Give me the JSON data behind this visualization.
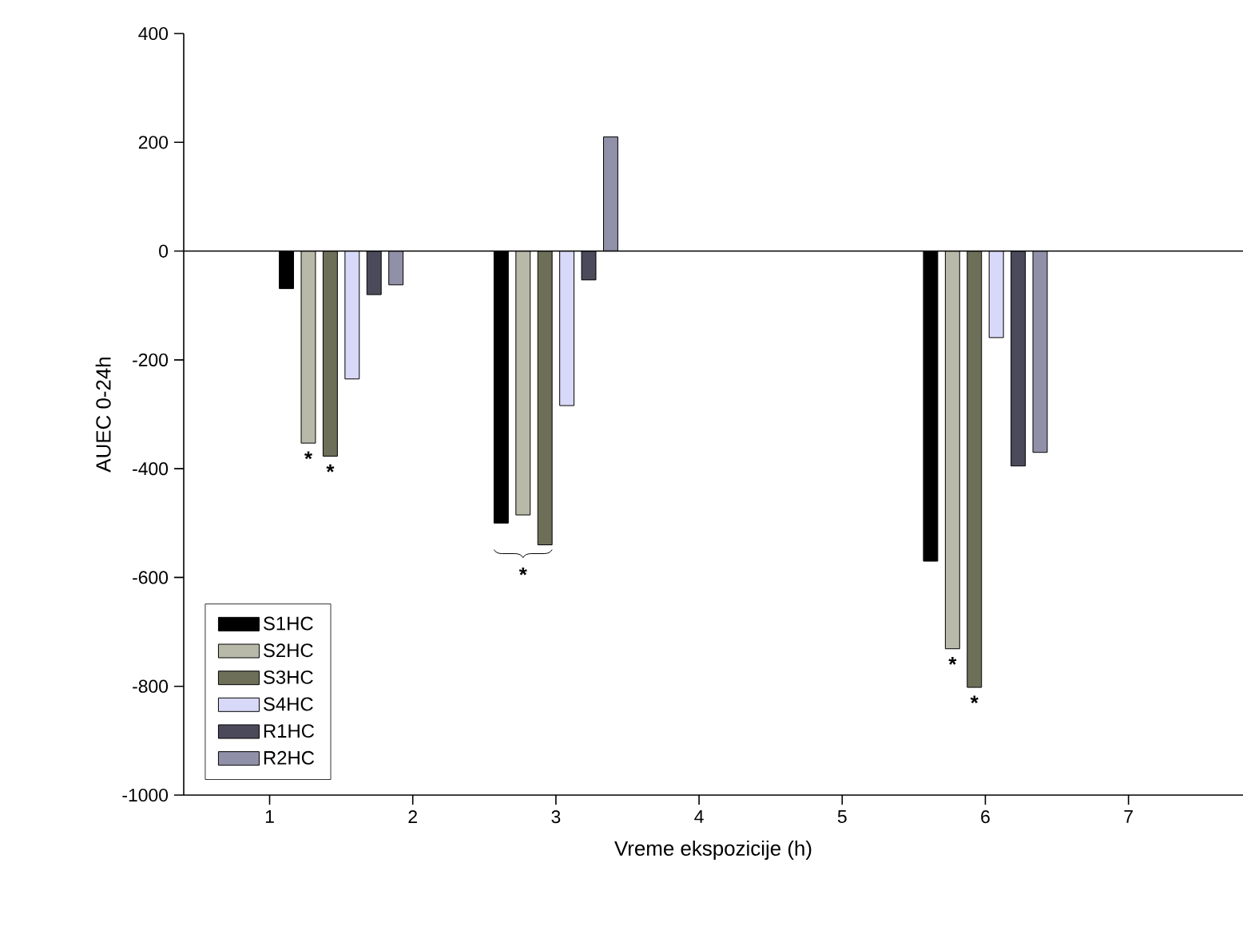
{
  "chart_data": {
    "type": "bar",
    "xlabel": "Vreme ekspozicije (h)",
    "ylabel": "AUEC 0-24h",
    "x": [
      1.5,
      3,
      6
    ],
    "series": [
      {
        "name": "S1HC",
        "color": "#000000",
        "values": [
          -69,
          -500,
          -570
        ]
      },
      {
        "name": "S2HC",
        "color": "#b8b9a8",
        "values": [
          -353,
          -485,
          -731
        ]
      },
      {
        "name": "S3HC",
        "color": "#6e6f58",
        "values": [
          -377,
          -540,
          -802
        ]
      },
      {
        "name": "S4HC",
        "color": "#d8d8f8",
        "values": [
          -235,
          -284,
          -159
        ]
      },
      {
        "name": "R1HC",
        "color": "#4a4a5a",
        "values": [
          -80,
          -53,
          -395
        ]
      },
      {
        "name": "R2HC",
        "color": "#9090a8",
        "values": [
          -62,
          210,
          -370
        ]
      }
    ],
    "xlim": [
      0.4,
      7.8
    ],
    "xticks": [
      1,
      2,
      3,
      4,
      5,
      6,
      7
    ],
    "ylim": [
      -1000,
      400
    ],
    "yticks": [
      -1000,
      -800,
      -600,
      -400,
      -200,
      0,
      200,
      400
    ],
    "ref_lines": [
      {
        "axis": "y",
        "value": 0
      }
    ],
    "annotations": [
      {
        "text": "*",
        "x": 1.5,
        "y": -353
      },
      {
        "text": "*",
        "x": 1.5,
        "y": -377
      },
      {
        "text": "*",
        "x": 3,
        "y": -540
      },
      {
        "text": "*",
        "x": 6,
        "y": -731
      },
      {
        "text": "*",
        "x": 6,
        "y": -802
      }
    ],
    "legend": "bottom left",
    "grid": false
  }
}
